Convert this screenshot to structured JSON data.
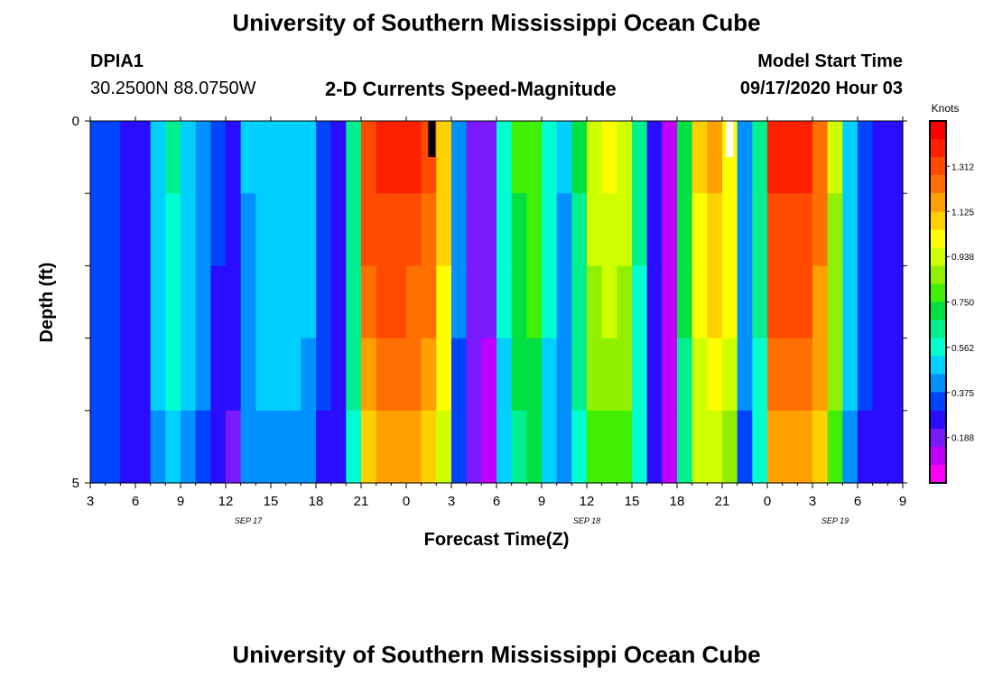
{
  "page": {
    "title_top": "University of Southern Mississippi Ocean Cube",
    "title_bottom": "University of Southern Mississippi Ocean Cube",
    "station_id": "DPIA1",
    "station_coords": "30.2500N 88.0750W",
    "subtitle": "2-D Currents Speed-Magnitude",
    "model_label": "Model Start Time",
    "model_time": "09/17/2020 Hour 03"
  },
  "colors": {
    "palette": [
      "#ff00ff",
      "#c000ff",
      "#7a1bff",
      "#2a0dff",
      "#0044ff",
      "#0090ff",
      "#00d0ff",
      "#00ffd0",
      "#00f090",
      "#00e040",
      "#40f000",
      "#90f000",
      "#d0ff00",
      "#ffff00",
      "#ffd000",
      "#ffa000",
      "#ff7000",
      "#ff4a00",
      "#ff2000",
      "#ff0000"
    ]
  },
  "chart_data": {
    "type": "heatmap",
    "title": "2-D Currents Speed-Magnitude",
    "xlabel": "Forecast Time(Z)",
    "ylabel": "Depth (ft)",
    "y_ticks": [
      "0",
      "5"
    ],
    "ylim": [
      0,
      5
    ],
    "x_ticks": [
      "3",
      "6",
      "9",
      "12",
      "15",
      "18",
      "21",
      "0",
      "3",
      "6",
      "9",
      "12",
      "15",
      "18",
      "21",
      "0",
      "3",
      "6",
      "9"
    ],
    "x_tick_hours": [
      0,
      3,
      6,
      9,
      12,
      15,
      18,
      21,
      24,
      27,
      30,
      33,
      36,
      39,
      42,
      45,
      48,
      51,
      54
    ],
    "date_labels": [
      {
        "text": "SEP 17",
        "hour": 10.5
      },
      {
        "text": "SEP 18",
        "hour": 33
      },
      {
        "text": "SEP 19",
        "hour": 49.5
      }
    ],
    "colorbar": {
      "unit": "Knots",
      "min": 0.0,
      "max": 1.5,
      "ticks": [
        "1.312",
        "1.125",
        "0.938",
        "0.750",
        "0.562",
        "0.375",
        "0.188"
      ],
      "tick_values": [
        1.312,
        1.125,
        0.938,
        0.75,
        0.562,
        0.375,
        0.188
      ]
    },
    "hours": 54,
    "depth_layers": 5,
    "speed_knots_by_hour": [
      0.36,
      0.36,
      0.3,
      0.27,
      0.51,
      0.61,
      0.52,
      0.43,
      0.31,
      0.26,
      0.46,
      0.5,
      0.51,
      0.52,
      0.48,
      0.35,
      0.3,
      0.67,
      1.33,
      1.38,
      1.38,
      1.35,
      1.28,
      1.09,
      0.4,
      0.22,
      0.16,
      0.56,
      0.77,
      0.81,
      0.56,
      0.46,
      0.68,
      0.95,
      0.98,
      0.93,
      0.63,
      0.27,
      0.14,
      0.72,
      1.08,
      1.13,
      1.04,
      0.42,
      0.64,
      1.38,
      1.39,
      1.36,
      1.27,
      0.92,
      0.52,
      0.34,
      0.3,
      0.29
    ],
    "depth_factors": [
      1.0,
      0.97,
      0.94,
      0.9,
      0.84
    ],
    "markers": [
      {
        "hour": 22.7,
        "color": "#000000",
        "layer": 0
      },
      {
        "hour": 42.5,
        "color": "#ffffff",
        "layer": 0
      }
    ]
  }
}
